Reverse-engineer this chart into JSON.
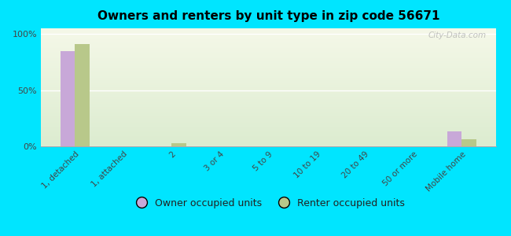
{
  "title": "Owners and renters by unit type in zip code 56671",
  "categories": [
    "1, detached",
    "1, attached",
    "2",
    "3 or 4",
    "5 to 9",
    "10 to 19",
    "20 to 49",
    "50 or more",
    "Mobile home"
  ],
  "owner_values": [
    85,
    0,
    0,
    0,
    0,
    0,
    0,
    0,
    13
  ],
  "renter_values": [
    91,
    0,
    3,
    0,
    0,
    0,
    0,
    0,
    6
  ],
  "owner_color": "#c8a8d8",
  "renter_color": "#b8c88a",
  "bg_color": "#00e5ff",
  "plot_bg_top": "#f5f8e8",
  "plot_bg_bottom": "#dcecd0",
  "ylabel_ticks": [
    "0%",
    "50%",
    "100%"
  ],
  "ytick_vals": [
    0,
    50,
    100
  ],
  "ylim": [
    0,
    105
  ],
  "bar_width": 0.3,
  "watermark": "City-Data.com",
  "legend_owner": "Owner occupied units",
  "legend_renter": "Renter occupied units"
}
